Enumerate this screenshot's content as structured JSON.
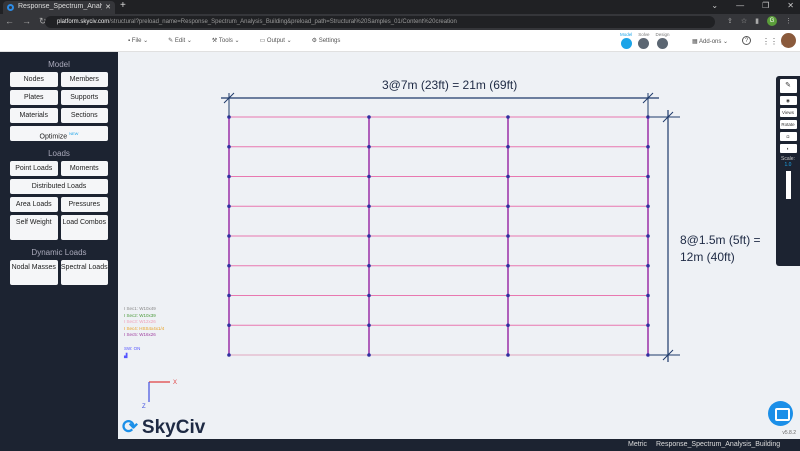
{
  "browser": {
    "tab_title": "Response_Spectrum_Analysis_Bu",
    "url_domain": "platform.skyciv.com",
    "url_path": "/structural?preload_name=Response_Spectrum_Analysis_Building&preload_path=Structural%20Samples_01/Content%20creation",
    "profile_initial": "G"
  },
  "menu": {
    "items": [
      "File",
      "Edit",
      "Tools",
      "Output",
      "Settings"
    ]
  },
  "steps": [
    "Model",
    "Solve",
    "Design"
  ],
  "addons": "Add-ons",
  "sidebar": {
    "model_title": "Model",
    "model_buttons": [
      "Nodes",
      "Members",
      "Plates",
      "Supports",
      "Materials",
      "Sections"
    ],
    "optimize": "Optimize",
    "optimize_badge": "NEW",
    "loads_title": "Loads",
    "loads_buttons": [
      "Point Loads",
      "Moments",
      "Distributed Loads",
      "Area Loads",
      "Pressures",
      "Self Weight",
      "Load Combos"
    ],
    "dynamic_title": "Dynamic Loads",
    "dynamic_buttons": [
      "Nodal Masses",
      "Spectral Loads"
    ]
  },
  "canvas": {
    "dim_horizontal": "3@7m (23ft) = 21m (69ft)",
    "dim_vertical_1": "8@1.5m (5ft) =",
    "dim_vertical_2": "12m (40ft)",
    "sections": [
      {
        "label": "Sec1: W10x49",
        "color": "#888888"
      },
      {
        "label": "Sec2: W10x39",
        "color": "#4a9a3a"
      },
      {
        "label": "Sec3: W12x26",
        "color": "#f0a0b8"
      },
      {
        "label": "Sec4: HSS4x4x1/4",
        "color": "#e8a020"
      },
      {
        "label": "Sec5: W16x26",
        "color": "#a040a0"
      }
    ],
    "sw": "SW: ON",
    "axis_x": "X",
    "axis_z": "Z",
    "logo": "SkyCiv",
    "version": "v5.8.2"
  },
  "toolbar": {
    "views": "Views",
    "rotate": "Rotate",
    "scale_label": "Scale:",
    "scale_value": "1.0"
  },
  "status": {
    "units": "Metric",
    "model_name": "Response_Spectrum_Analysis_Building"
  }
}
